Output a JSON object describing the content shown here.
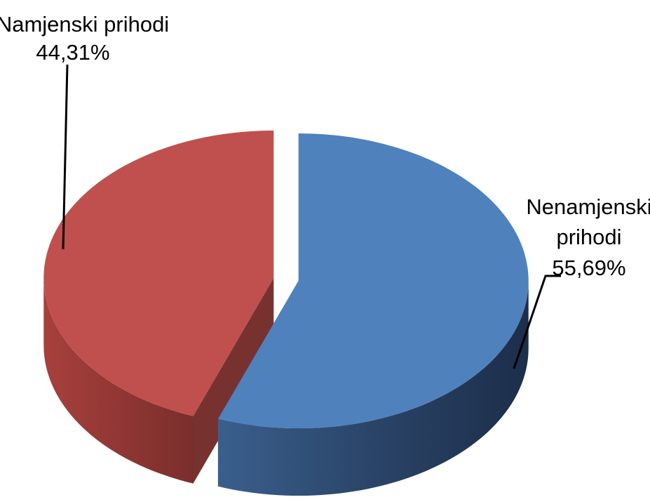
{
  "chart_data": {
    "type": "pie",
    "style": "3d-exploded",
    "slices": [
      {
        "label": "Namjenski prihodi",
        "value": 44.31,
        "value_label": "44,31%",
        "color": "#C0504D"
      },
      {
        "label": "Nenamjenski prihodi",
        "value": 55.69,
        "value_label": "55,69%",
        "color": "#4F81BD"
      }
    ]
  },
  "labels": {
    "red_name": "Namjenski prihodi",
    "red_value": "44,31%",
    "blue_name_line1": "Nenamjenski",
    "blue_name_line2": "prihodi",
    "blue_value": "55,69%"
  }
}
